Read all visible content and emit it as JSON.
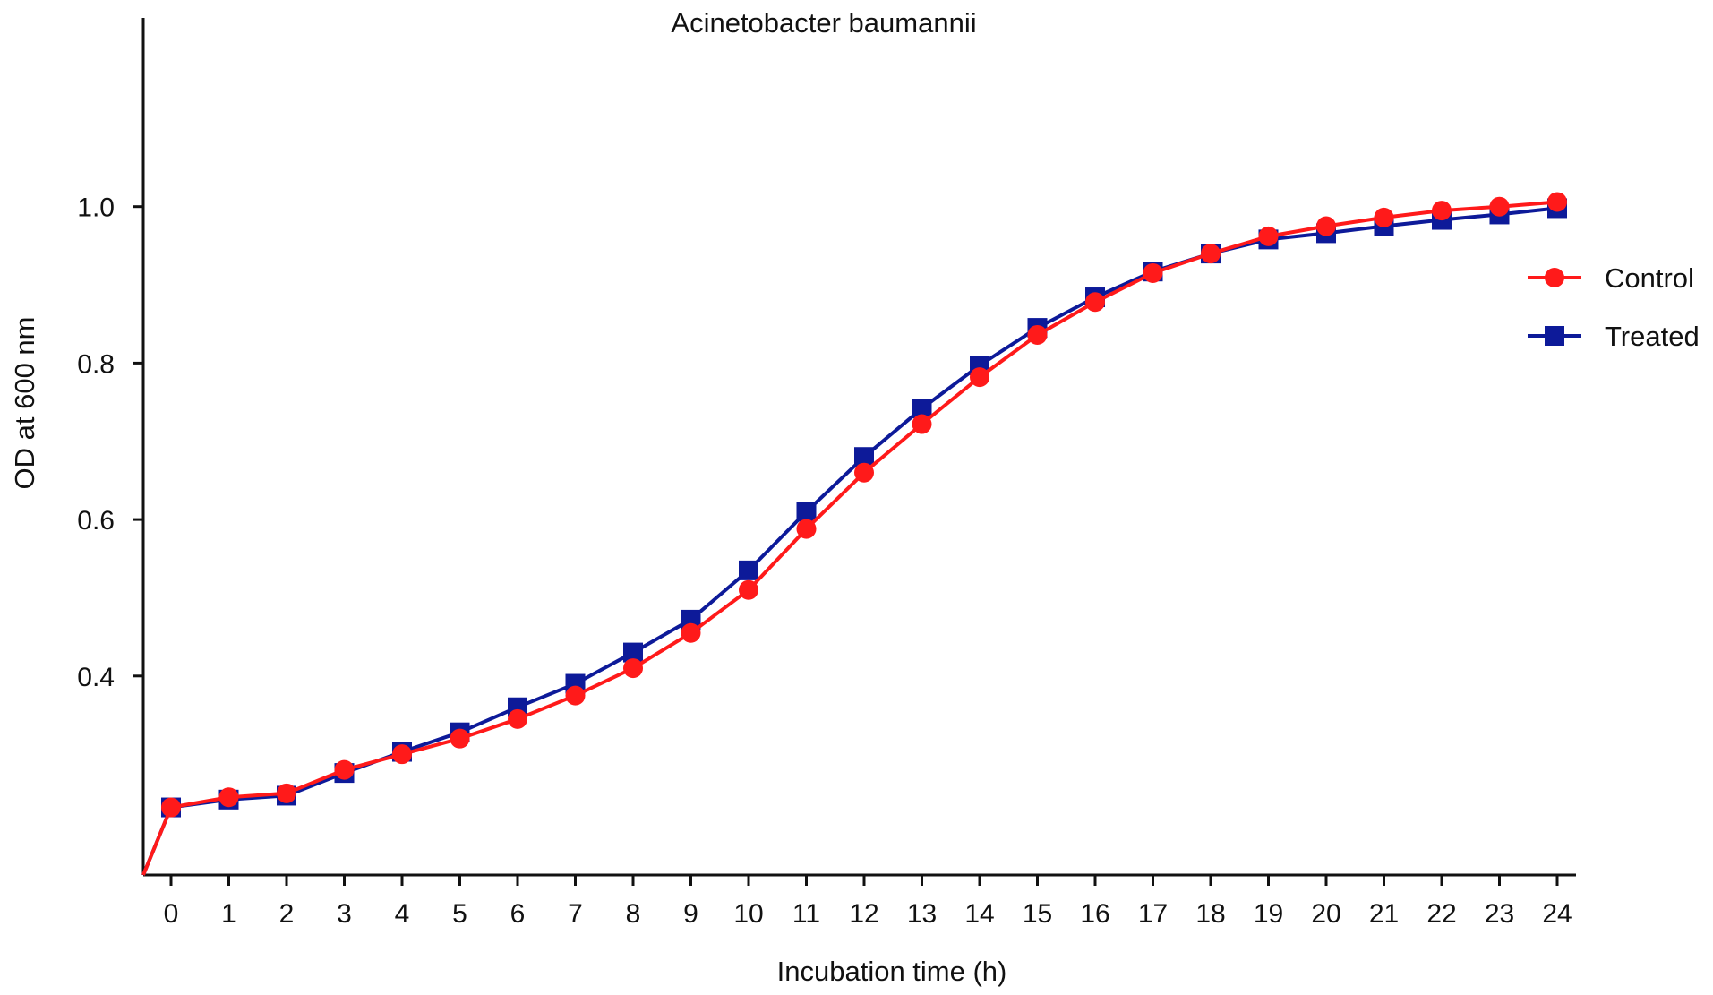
{
  "chart_data": {
    "type": "line",
    "title": "Acinetobacter baumannii",
    "xlabel": "Incubation time (h)",
    "ylabel": "OD at 600 nm",
    "x": [
      0,
      1,
      2,
      3,
      4,
      5,
      6,
      7,
      8,
      9,
      10,
      11,
      12,
      13,
      14,
      15,
      16,
      17,
      18,
      19,
      20,
      21,
      22,
      23,
      24
    ],
    "x_tick_labels": [
      "0",
      "1",
      "2",
      "3",
      "4",
      "5",
      "6",
      "7",
      "8",
      "9",
      "10",
      "11",
      "12",
      "13",
      "14",
      "15",
      "16",
      "17",
      "18",
      "19",
      "20",
      "21",
      "22",
      "23",
      "24"
    ],
    "y_ticks": [
      0.4,
      0.6,
      0.8,
      1.0
    ],
    "y_tick_labels": [
      "0.4",
      "0.6",
      "0.8",
      "1.0"
    ],
    "ylim": [
      0.2,
      1.08
    ],
    "xlim": [
      -0.5,
      24.5
    ],
    "grid": false,
    "legend_position": "right",
    "series": [
      {
        "name": "Control",
        "color": "#ff1a1a",
        "marker": "circle",
        "values": [
          0.232,
          0.245,
          0.25,
          0.28,
          0.3,
          0.32,
          0.345,
          0.375,
          0.41,
          0.455,
          0.51,
          0.588,
          0.66,
          0.722,
          0.782,
          0.836,
          0.878,
          0.915,
          0.94,
          0.962,
          0.975,
          0.986,
          0.995,
          1.0,
          1.006
        ]
      },
      {
        "name": "Treated",
        "color": "#0d1a99",
        "marker": "square",
        "values": [
          0.232,
          0.242,
          0.247,
          0.276,
          0.303,
          0.328,
          0.36,
          0.39,
          0.43,
          0.472,
          0.535,
          0.61,
          0.68,
          0.742,
          0.797,
          0.845,
          0.884,
          0.917,
          0.94,
          0.958,
          0.966,
          0.975,
          0.983,
          0.99,
          0.998
        ]
      }
    ]
  }
}
